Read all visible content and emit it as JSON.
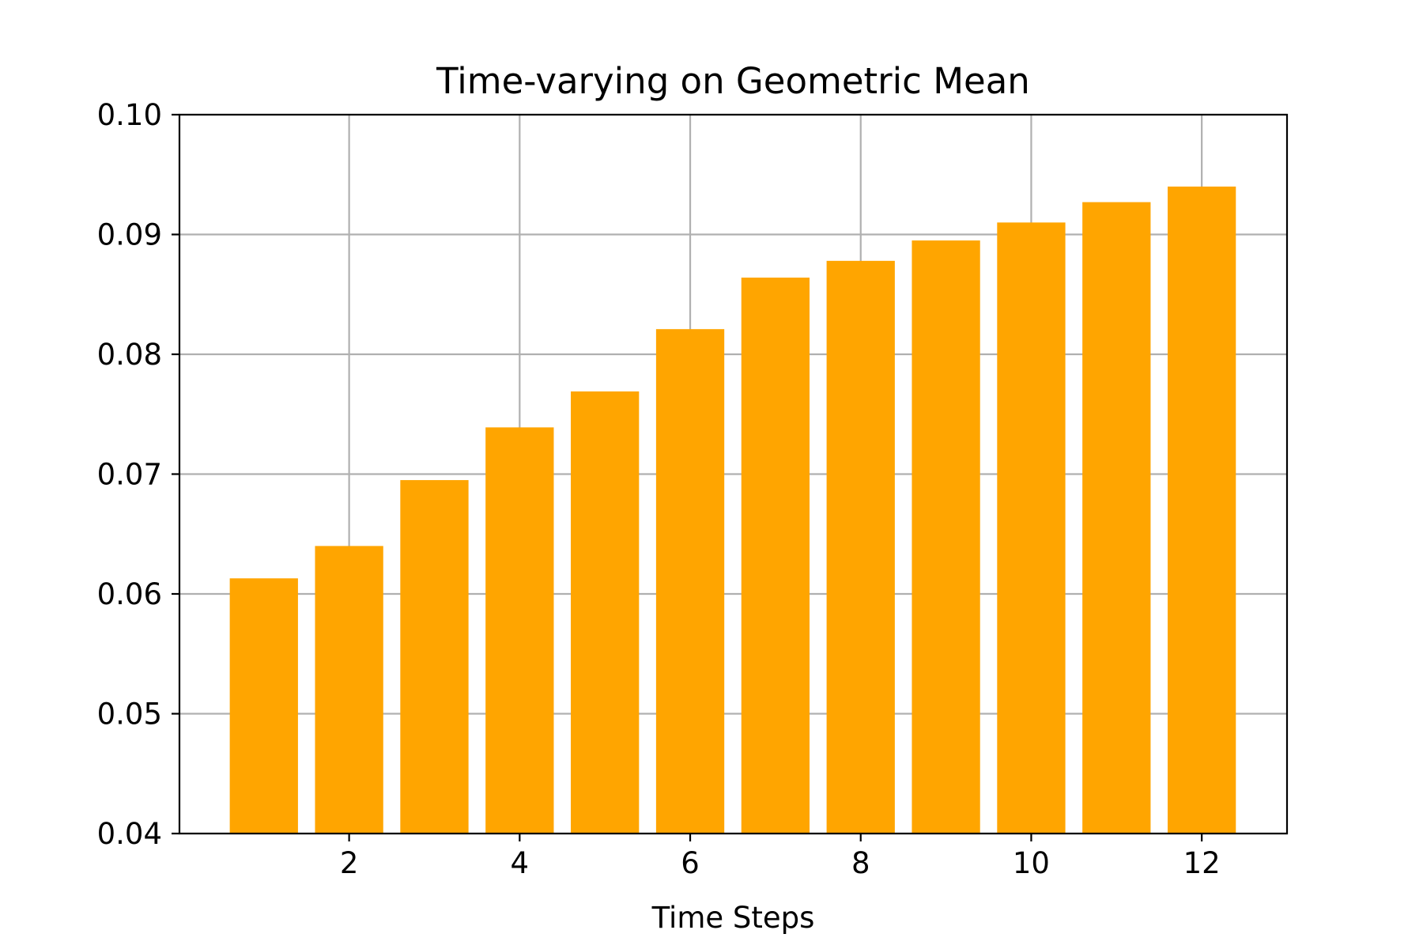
{
  "chart_data": {
    "type": "bar",
    "title": "Time-varying on Geometric Mean",
    "xlabel": "Time Steps",
    "ylabel": "",
    "x": [
      1,
      2,
      3,
      4,
      5,
      6,
      7,
      8,
      9,
      10,
      11,
      12
    ],
    "values": [
      0.0613,
      0.064,
      0.0695,
      0.0739,
      0.0769,
      0.0821,
      0.0864,
      0.0878,
      0.0895,
      0.091,
      0.0927,
      0.094
    ],
    "xlim": [
      0.01,
      13.0
    ],
    "ylim": [
      0.04,
      0.1
    ],
    "xticks": [
      2,
      4,
      6,
      8,
      10,
      12
    ],
    "xtick_labels": [
      "2",
      "4",
      "6",
      "8",
      "10",
      "12"
    ],
    "yticks": [
      0.04,
      0.05,
      0.06,
      0.07,
      0.08,
      0.09,
      0.1
    ],
    "ytick_labels": [
      "0.04",
      "0.05",
      "0.06",
      "0.07",
      "0.08",
      "0.09",
      "0.10"
    ],
    "bar_width": 0.8,
    "grid": true,
    "legend": "none",
    "colors": {
      "bar": "#FFA500",
      "grid": "#b0b0b0",
      "axis": "#000000"
    }
  }
}
